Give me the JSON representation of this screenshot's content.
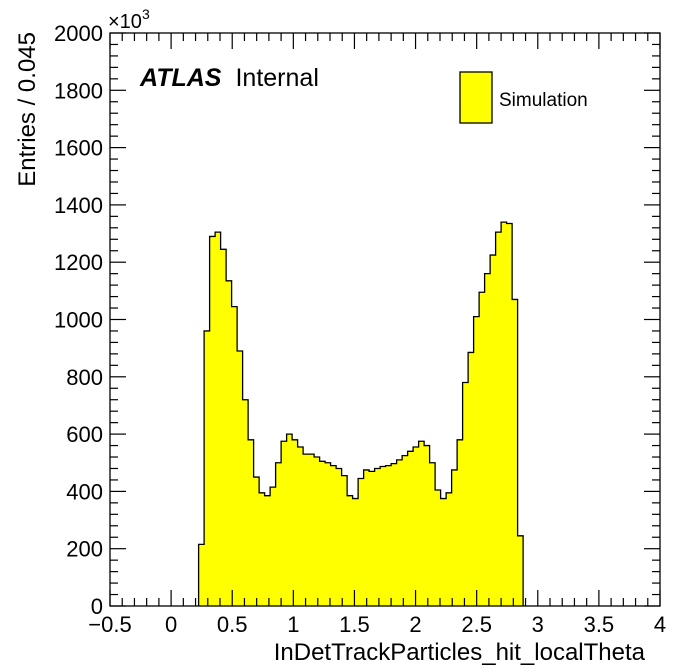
{
  "chart_data": {
    "type": "bar",
    "xlabel": "InDetTrackParticles_hit_localTheta",
    "ylabel": "Entries / 0.045",
    "y_multiplier": "×10",
    "y_multiplier_exponent": "3",
    "xlim": [
      -0.5,
      4.0
    ],
    "ylim": [
      0,
      2000
    ],
    "x_ticks": [
      -0.5,
      0,
      0.5,
      1,
      1.5,
      2,
      2.5,
      3,
      3.5,
      4
    ],
    "x_tick_labels": [
      "−0.5",
      "0",
      "0.5",
      "1",
      "1.5",
      "2",
      "2.5",
      "3",
      "3.5",
      "4"
    ],
    "y_ticks": [
      0,
      200,
      400,
      600,
      800,
      1000,
      1200,
      1400,
      1600,
      1800,
      2000
    ],
    "y_tick_labels": [
      "0",
      "200",
      "400",
      "600",
      "800",
      "1000",
      "1200",
      "1400",
      "1600",
      "1800",
      "2000"
    ],
    "bin_width": 0.045,
    "bin_start": 0.225,
    "values": [
      215,
      960,
      1290,
      1305,
      1245,
      1135,
      1045,
      890,
      720,
      580,
      450,
      395,
      385,
      415,
      500,
      575,
      600,
      580,
      555,
      530,
      530,
      520,
      505,
      500,
      490,
      480,
      455,
      385,
      375,
      445,
      475,
      470,
      480,
      487,
      490,
      497,
      510,
      525,
      540,
      555,
      575,
      560,
      500,
      405,
      375,
      395,
      475,
      580,
      780,
      885,
      1010,
      1095,
      1160,
      1225,
      1305,
      1340,
      1335,
      1070,
      245
    ],
    "fill_color": "#ffff00",
    "line_color": "#000000",
    "legend": [
      {
        "label": "Simulation",
        "color": "#ffff00"
      }
    ],
    "legend_position": "top-right",
    "grid": false
  },
  "atlas_label": {
    "bold": "ATLAS",
    "rest": "Internal"
  }
}
